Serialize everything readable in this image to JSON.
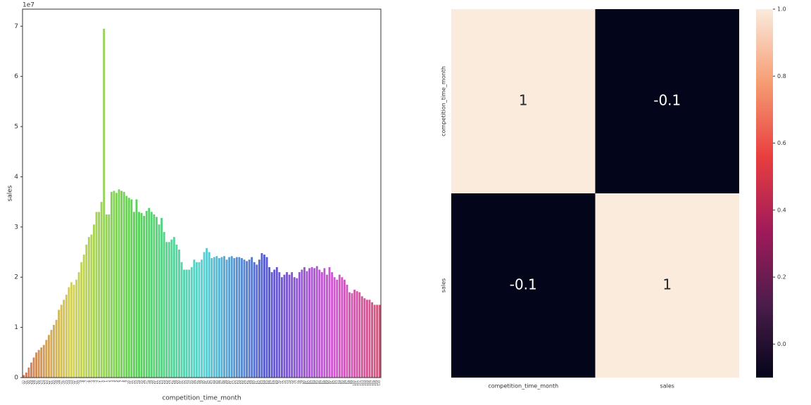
{
  "chart_data": [
    {
      "type": "bar",
      "xlabel": "competition_time_month",
      "ylabel": "sales",
      "y_offset_label": "1e7",
      "palette": "husl",
      "categories": [
        -32,
        -31,
        -30,
        -29,
        -28,
        -27,
        -26,
        -25,
        -24,
        -23,
        -22,
        -21,
        -20,
        -19,
        -18,
        -17,
        -16,
        -15,
        -14,
        -13,
        -12,
        -11,
        -10,
        -9,
        -8,
        -7,
        -6,
        -5,
        -4,
        -3,
        -2,
        -1,
        0,
        1,
        2,
        3,
        4,
        5,
        6,
        7,
        8,
        9,
        10,
        11,
        12,
        13,
        14,
        15,
        16,
        17,
        18,
        19,
        20,
        21,
        22,
        23,
        24,
        25,
        26,
        27,
        28,
        29,
        30,
        31,
        32,
        33,
        34,
        35,
        36,
        37,
        38,
        39,
        40,
        41,
        42,
        43,
        44,
        45,
        46,
        47,
        48,
        49,
        50,
        51,
        52,
        53,
        54,
        55,
        56,
        57,
        58,
        59,
        60,
        61,
        62,
        63,
        64,
        65,
        66,
        67,
        68,
        69,
        70,
        71,
        72,
        73,
        74,
        75,
        76,
        77,
        78,
        79,
        80,
        81,
        82,
        83,
        84,
        85,
        86,
        87,
        88,
        89,
        90,
        91,
        92,
        93,
        94,
        95,
        96,
        97,
        98,
        99,
        100,
        101,
        102,
        103,
        104,
        105,
        106,
        107,
        108,
        109,
        110
      ],
      "values": [
        0.05,
        0.1,
        0.2,
        0.3,
        0.4,
        0.5,
        0.55,
        0.6,
        0.65,
        0.75,
        0.85,
        0.95,
        1.05,
        1.15,
        1.35,
        1.45,
        1.55,
        1.65,
        1.8,
        1.9,
        1.85,
        1.95,
        2.1,
        2.3,
        2.45,
        2.65,
        2.8,
        2.85,
        3.05,
        3.3,
        3.3,
        3.5,
        6.95,
        3.25,
        3.25,
        3.7,
        3.72,
        3.68,
        3.75,
        3.72,
        3.7,
        3.62,
        3.58,
        3.55,
        3.3,
        3.55,
        3.3,
        3.28,
        3.22,
        3.32,
        3.38,
        3.3,
        3.25,
        3.2,
        3.05,
        3.18,
        2.9,
        2.7,
        2.7,
        2.75,
        2.8,
        2.65,
        2.55,
        2.3,
        2.15,
        2.15,
        2.15,
        2.2,
        2.35,
        2.3,
        2.3,
        2.35,
        2.5,
        2.58,
        2.5,
        2.38,
        2.4,
        2.42,
        2.38,
        2.4,
        2.42,
        2.35,
        2.4,
        2.42,
        2.38,
        2.4,
        2.4,
        2.38,
        2.35,
        2.32,
        2.35,
        2.4,
        2.3,
        2.25,
        2.35,
        2.48,
        2.45,
        2.4,
        2.2,
        2.1,
        2.15,
        2.2,
        2.1,
        2.0,
        2.05,
        2.1,
        2.05,
        2.1,
        2.0,
        1.98,
        2.1,
        2.15,
        2.2,
        2.12,
        2.18,
        2.2,
        2.18,
        2.22,
        2.15,
        2.1,
        2.18,
        2.05,
        2.2,
        2.1,
        2.0,
        1.95,
        2.05,
        2.0,
        1.95,
        1.85,
        1.7,
        1.68,
        1.75,
        1.72,
        1.7,
        1.62,
        1.58,
        1.55,
        1.55,
        1.5,
        1.45,
        1.45,
        1.45
      ],
      "ylim": [
        0,
        7.34
      ],
      "yticks": [
        0,
        1,
        2,
        3,
        4,
        5,
        6,
        7
      ]
    },
    {
      "type": "heatmap",
      "cmap": "rocket",
      "labels": [
        "competition_time_month",
        "sales"
      ],
      "matrix": [
        [
          1,
          -0.1
        ],
        [
          -0.1,
          1
        ]
      ],
      "clim": [
        -0.1,
        1
      ],
      "cticks": [
        {
          "value": 0,
          "label": "0.0"
        },
        {
          "value": 0.2,
          "label": "0.2"
        },
        {
          "value": 0.4,
          "label": "0.4"
        },
        {
          "value": 0.6,
          "label": "0.6"
        },
        {
          "value": 0.8,
          "label": "0.8"
        },
        {
          "value": 1,
          "label": "1.0"
        }
      ]
    }
  ]
}
